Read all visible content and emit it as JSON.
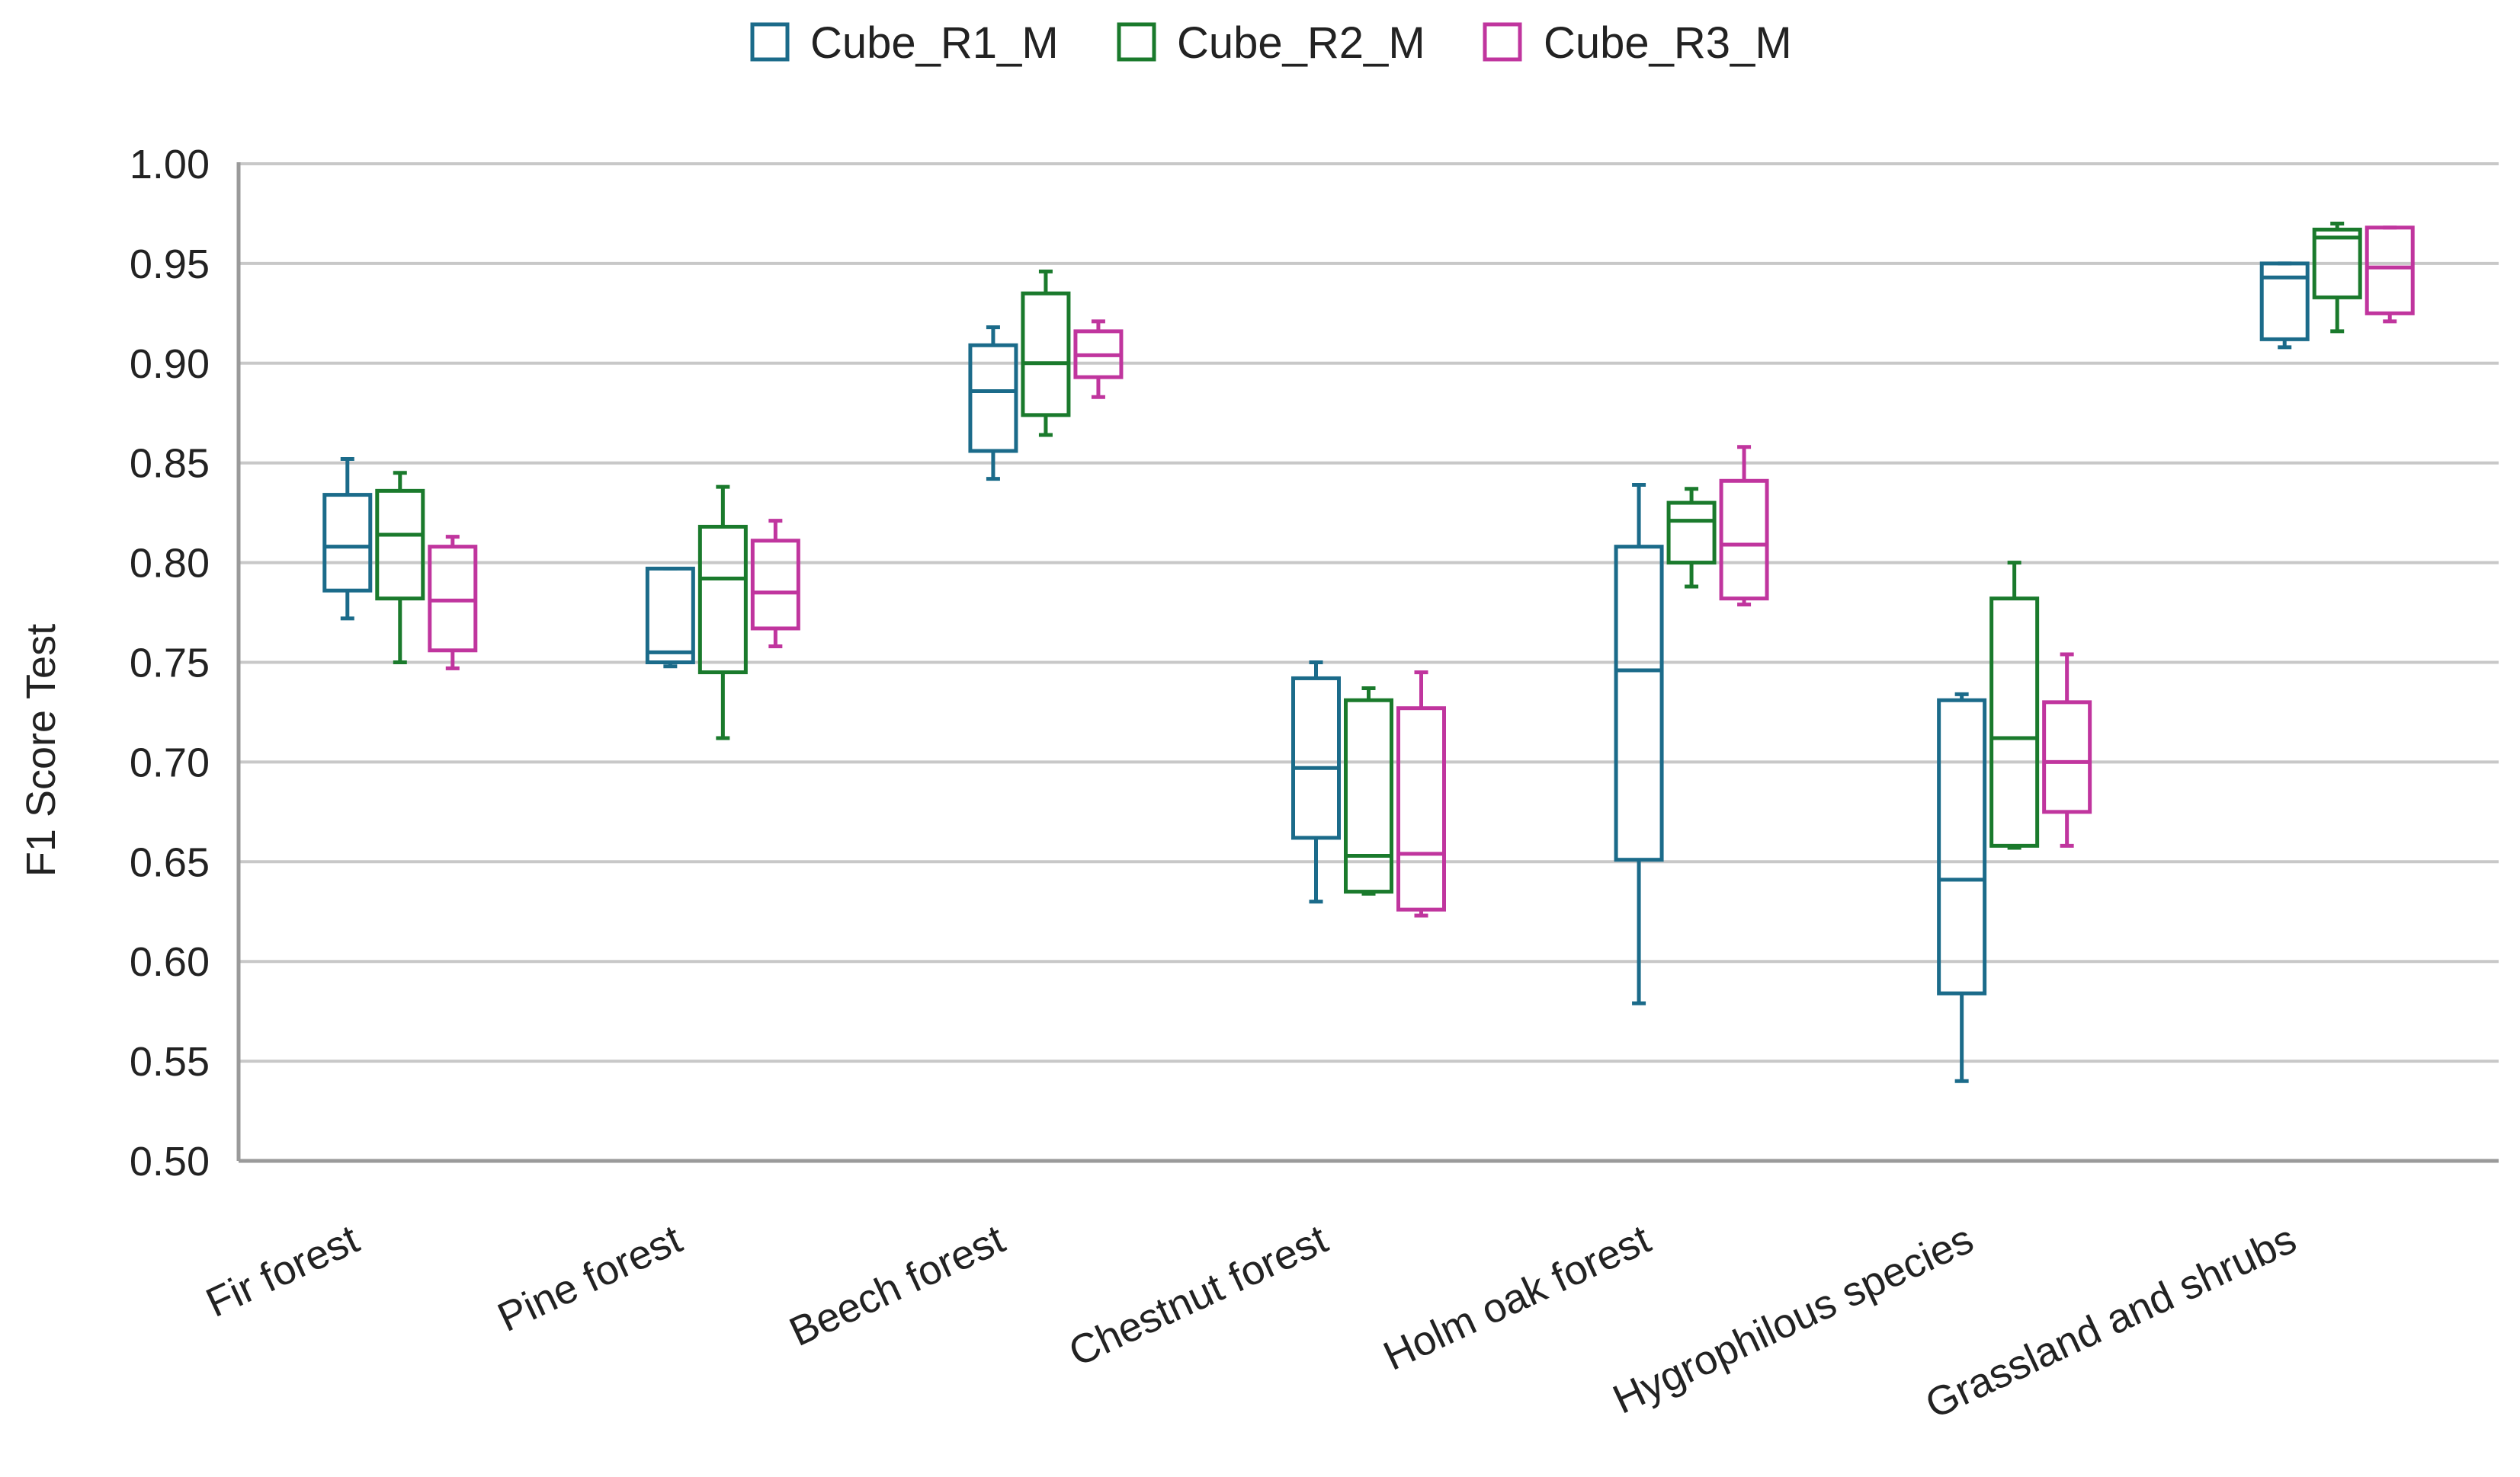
{
  "chart_data": {
    "type": "boxplot",
    "title": "",
    "xlabel": "",
    "ylabel": "F1 Score Test",
    "ylim": [
      0.5,
      1.0
    ],
    "yticks": [
      "0.50",
      "0.55",
      "0.60",
      "0.65",
      "0.70",
      "0.75",
      "0.80",
      "0.85",
      "0.90",
      "0.95",
      "1.00"
    ],
    "legend_position": "top-center",
    "grid": true,
    "categories": [
      "Fir forest",
      "Pine forest",
      "Beech forest",
      "Chestnut forest",
      "Holm oak forest",
      "Hygrophilous species",
      "Grassland and shrubs"
    ],
    "series": [
      {
        "name": "Cube_R1_M",
        "color": "#1b6b8a",
        "boxes": [
          {
            "min": 0.772,
            "q1": 0.786,
            "median": 0.808,
            "q3": 0.834,
            "max": 0.852
          },
          {
            "min": 0.748,
            "q1": 0.75,
            "median": 0.755,
            "q3": 0.797,
            "max": 0.797
          },
          {
            "min": 0.842,
            "q1": 0.856,
            "median": 0.886,
            "q3": 0.909,
            "max": 0.918
          },
          {
            "min": 0.63,
            "q1": 0.662,
            "median": 0.697,
            "q3": 0.742,
            "max": 0.75
          },
          {
            "min": 0.579,
            "q1": 0.651,
            "median": 0.746,
            "q3": 0.808,
            "max": 0.839
          },
          {
            "min": 0.54,
            "q1": 0.584,
            "median": 0.641,
            "q3": 0.731,
            "max": 0.734
          },
          {
            "min": 0.908,
            "q1": 0.912,
            "median": 0.943,
            "q3": 0.95,
            "max": 0.95
          }
        ]
      },
      {
        "name": "Cube_R2_M",
        "color": "#1a7a2c",
        "boxes": [
          {
            "min": 0.75,
            "q1": 0.782,
            "median": 0.814,
            "q3": 0.836,
            "max": 0.845
          },
          {
            "min": 0.712,
            "q1": 0.745,
            "median": 0.792,
            "q3": 0.818,
            "max": 0.838
          },
          {
            "min": 0.864,
            "q1": 0.874,
            "median": 0.9,
            "q3": 0.935,
            "max": 0.946
          },
          {
            "min": 0.634,
            "q1": 0.635,
            "median": 0.653,
            "q3": 0.731,
            "max": 0.737
          },
          {
            "min": 0.788,
            "q1": 0.8,
            "median": 0.821,
            "q3": 0.83,
            "max": 0.837
          },
          {
            "min": 0.657,
            "q1": 0.658,
            "median": 0.712,
            "q3": 0.782,
            "max": 0.8
          },
          {
            "min": 0.916,
            "q1": 0.933,
            "median": 0.963,
            "q3": 0.967,
            "max": 0.97
          }
        ]
      },
      {
        "name": "Cube_R3_M",
        "color": "#c0359e",
        "boxes": [
          {
            "min": 0.747,
            "q1": 0.756,
            "median": 0.781,
            "q3": 0.808,
            "max": 0.813
          },
          {
            "min": 0.758,
            "q1": 0.767,
            "median": 0.785,
            "q3": 0.811,
            "max": 0.821
          },
          {
            "min": 0.883,
            "q1": 0.893,
            "median": 0.904,
            "q3": 0.916,
            "max": 0.921
          },
          {
            "min": 0.623,
            "q1": 0.626,
            "median": 0.654,
            "q3": 0.727,
            "max": 0.745
          },
          {
            "min": 0.779,
            "q1": 0.782,
            "median": 0.809,
            "q3": 0.841,
            "max": 0.858
          },
          {
            "min": 0.658,
            "q1": 0.675,
            "median": 0.7,
            "q3": 0.73,
            "max": 0.754
          },
          {
            "min": 0.921,
            "q1": 0.925,
            "median": 0.948,
            "q3": 0.968,
            "max": 0.968
          }
        ]
      }
    ]
  }
}
